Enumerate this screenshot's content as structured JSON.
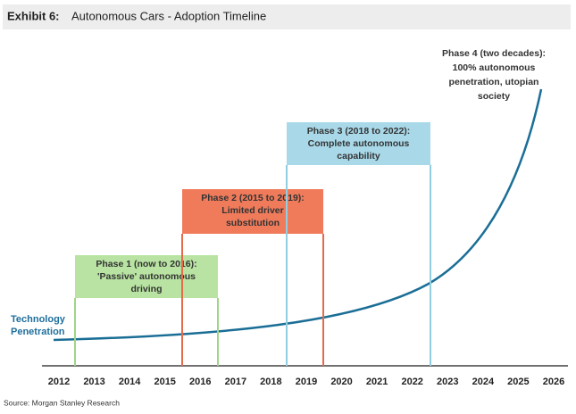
{
  "header": {
    "label": "Exhibit 6:",
    "title": "Autonomous Cars - Adoption Timeline"
  },
  "years": [
    "2012",
    "2013",
    "2014",
    "2015",
    "2016",
    "2017",
    "2018",
    "2019",
    "2020",
    "2021",
    "2022",
    "2023",
    "2024",
    "2025",
    "2026"
  ],
  "curve_label": [
    "Technology",
    "Penetration"
  ],
  "phases": [
    {
      "lines": [
        "Phase 1 (now to 2016):",
        "'Passive' autonomous",
        "driving"
      ]
    },
    {
      "lines": [
        "Phase 2 (2015 to 2019):",
        "Limited driver",
        "substitution"
      ]
    },
    {
      "lines": [
        "Phase 3 (2018 to 2022):",
        "Complete autonomous",
        "capability"
      ]
    },
    {
      "lines": [
        "Phase 4 (two decades):",
        "100% autonomous",
        "penetration, utopian",
        "society"
      ]
    }
  ],
  "source": "Source: Morgan Stanley Research"
}
